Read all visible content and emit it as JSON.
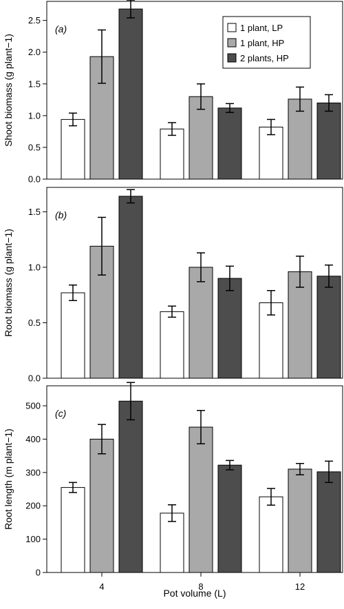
{
  "chart_data": [
    {
      "type": "bar",
      "panel_label": "(a)",
      "ylabel": "Shoot biomass (g plant−1)",
      "ylim": [
        0,
        2.8
      ],
      "yticks": [
        0.0,
        0.5,
        1.0,
        1.5,
        2.0,
        2.5
      ],
      "ytick_labels": [
        "0.0",
        "0.5",
        "1.0",
        "1.5",
        "2.0",
        "2.5"
      ],
      "categories": [
        "4",
        "8",
        "12"
      ],
      "series": [
        {
          "name": "1 plant, LP",
          "values": [
            0.94,
            0.79,
            0.82
          ],
          "errors": [
            0.1,
            0.1,
            0.12
          ]
        },
        {
          "name": "1 plant, HP",
          "values": [
            1.93,
            1.3,
            1.26
          ],
          "errors": [
            0.42,
            0.2,
            0.19
          ]
        },
        {
          "name": "2 plants, HP",
          "values": [
            2.68,
            1.12,
            1.2
          ],
          "errors": [
            0.14,
            0.07,
            0.13
          ]
        }
      ],
      "legend": "top-right"
    },
    {
      "type": "bar",
      "panel_label": "(b)",
      "ylabel": "Root biomass (g plant−1)",
      "ylim": [
        0,
        1.72
      ],
      "yticks": [
        0.0,
        0.5,
        1.0,
        1.5
      ],
      "ytick_labels": [
        "0.0",
        "0.5",
        "1.0",
        "1.5"
      ],
      "categories": [
        "4",
        "8",
        "12"
      ],
      "series": [
        {
          "name": "1 plant, LP",
          "values": [
            0.77,
            0.6,
            0.68
          ],
          "errors": [
            0.07,
            0.05,
            0.11
          ]
        },
        {
          "name": "1 plant, HP",
          "values": [
            1.19,
            1.0,
            0.96
          ],
          "errors": [
            0.26,
            0.13,
            0.14
          ]
        },
        {
          "name": "2 plants, HP",
          "values": [
            1.64,
            0.9,
            0.92
          ],
          "errors": [
            0.06,
            0.11,
            0.1
          ]
        }
      ]
    },
    {
      "type": "bar",
      "panel_label": "(c)",
      "ylabel": "Root length (m plant−1)",
      "xlabel": "Pot volume (L)",
      "ylim": [
        0,
        560
      ],
      "yticks": [
        0,
        100,
        200,
        300,
        400,
        500
      ],
      "ytick_labels": [
        "0",
        "100",
        "200",
        "300",
        "400",
        "500"
      ],
      "categories": [
        "4",
        "8",
        "12"
      ],
      "series": [
        {
          "name": "1 plant, LP",
          "values": [
            255,
            178,
            227
          ],
          "errors": [
            15,
            25,
            25
          ]
        },
        {
          "name": "1 plant, HP",
          "values": [
            400,
            436,
            310
          ],
          "errors": [
            44,
            50,
            17
          ]
        },
        {
          "name": "2 plants, HP",
          "values": [
            514,
            322,
            302
          ],
          "errors": [
            56,
            14,
            32
          ]
        }
      ]
    }
  ],
  "colors": [
    "#ffffff",
    "#a9a9a9",
    "#4d4d4d"
  ]
}
